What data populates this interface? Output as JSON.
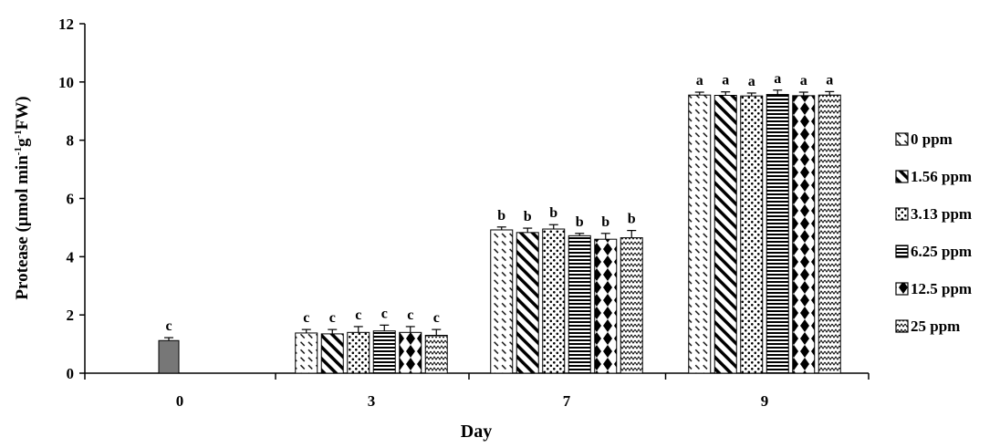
{
  "chart_data": {
    "type": "bar",
    "title": "",
    "xlabel": "Day",
    "ylabel_parts": [
      "Protease  (µmol min",
      "-1",
      "g",
      "-1",
      "FW)"
    ],
    "ylim": [
      0,
      12
    ],
    "yticks": [
      "0",
      "2",
      "4",
      "6",
      "8",
      "10",
      "12"
    ],
    "grid": false,
    "legend_position": "right",
    "categories": [
      "0",
      "3",
      "7",
      "9"
    ],
    "control": {
      "category": "0",
      "value": 1.12,
      "error": 0.1,
      "letter": "c",
      "color": "#777777"
    },
    "series": [
      {
        "name": "0 ppm",
        "pattern": "dash-diag",
        "values": [
          null,
          1.38,
          4.92,
          9.55
        ],
        "errors": [
          null,
          0.12,
          0.1,
          0.1
        ],
        "letters": [
          null,
          "c",
          "b",
          "a"
        ]
      },
      {
        "name": "1.56 ppm",
        "pattern": "diag",
        "values": [
          null,
          1.35,
          4.83,
          9.54
        ],
        "errors": [
          null,
          0.15,
          0.15,
          0.12
        ],
        "letters": [
          null,
          "c",
          "b",
          "a"
        ]
      },
      {
        "name": "3.13 ppm",
        "pattern": "dots",
        "values": [
          null,
          1.4,
          4.95,
          9.52
        ],
        "errors": [
          null,
          0.2,
          0.15,
          0.1
        ],
        "letters": [
          null,
          "c",
          "b",
          "a"
        ]
      },
      {
        "name": "6.25 ppm",
        "pattern": "hlines",
        "values": [
          null,
          1.45,
          4.72,
          9.57
        ],
        "errors": [
          null,
          0.2,
          0.08,
          0.15
        ],
        "letters": [
          null,
          "c",
          "b",
          "a"
        ]
      },
      {
        "name": "12.5 ppm",
        "pattern": "diamonds",
        "values": [
          null,
          1.4,
          4.6,
          9.53
        ],
        "errors": [
          null,
          0.2,
          0.2,
          0.12
        ],
        "letters": [
          null,
          "c",
          "b",
          "a"
        ]
      },
      {
        "name": "25 ppm",
        "pattern": "zigzag",
        "values": [
          null,
          1.3,
          4.65,
          9.55
        ],
        "errors": [
          null,
          0.2,
          0.25,
          0.12
        ],
        "letters": [
          null,
          "c",
          "b",
          "a"
        ]
      }
    ]
  }
}
